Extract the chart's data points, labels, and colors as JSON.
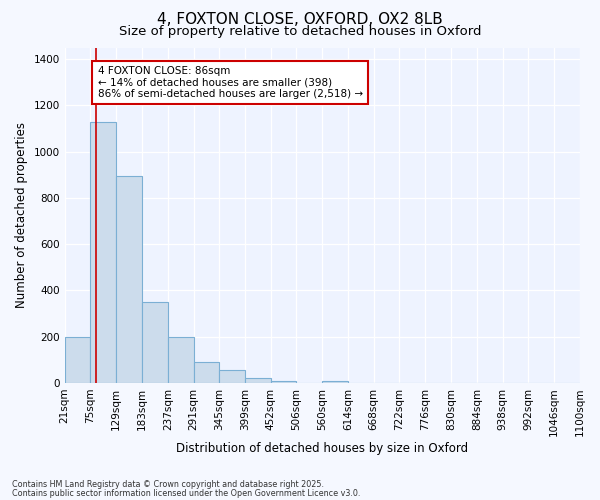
{
  "title1": "4, FOXTON CLOSE, OXFORD, OX2 8LB",
  "title2": "Size of property relative to detached houses in Oxford",
  "xlabel": "Distribution of detached houses by size in Oxford",
  "ylabel": "Number of detached properties",
  "bin_edges": [
    21,
    75,
    129,
    183,
    237,
    291,
    345,
    399,
    452,
    506,
    560,
    614,
    668,
    722,
    776,
    830,
    884,
    938,
    992,
    1046,
    1100
  ],
  "bar_heights": [
    200,
    1130,
    893,
    350,
    200,
    90,
    55,
    20,
    10,
    0,
    10,
    0,
    0,
    0,
    0,
    0,
    0,
    0,
    0,
    0
  ],
  "bar_color": "#ccdcec",
  "bar_edge_color": "#7bafd4",
  "property_line_x": 86,
  "property_line_color": "#cc0000",
  "annotation_text": "4 FOXTON CLOSE: 86sqm\n← 14% of detached houses are smaller (398)\n86% of semi-detached houses are larger (2,518) →",
  "annotation_box_color": "#cc0000",
  "ylim": [
    0,
    1450
  ],
  "yticks": [
    0,
    200,
    400,
    600,
    800,
    1000,
    1200,
    1400
  ],
  "footnote1": "Contains HM Land Registry data © Crown copyright and database right 2025.",
  "footnote2": "Contains public sector information licensed under the Open Government Licence v3.0.",
  "bg_color": "#f5f8ff",
  "plot_bg_color": "#eef3ff",
  "grid_color": "#ffffff",
  "title_fontsize": 11,
  "subtitle_fontsize": 9.5,
  "axis_label_fontsize": 8.5,
  "tick_fontsize": 7.5
}
